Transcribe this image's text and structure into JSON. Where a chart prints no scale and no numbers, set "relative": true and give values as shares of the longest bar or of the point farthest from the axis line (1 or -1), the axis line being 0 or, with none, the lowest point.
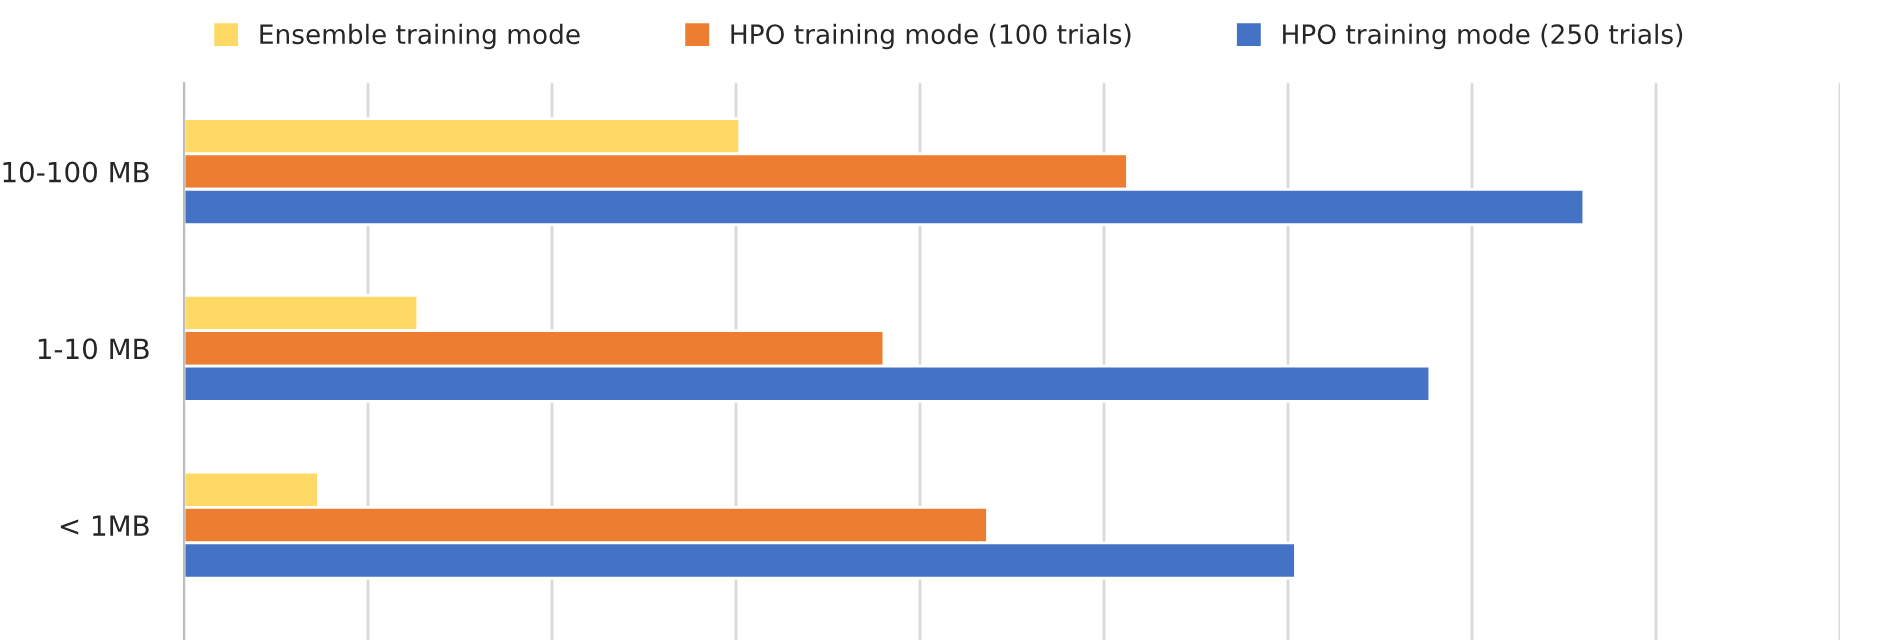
{
  "chart_data": {
    "type": "bar",
    "orientation": "horizontal",
    "relative": true,
    "categories": [
      "10-100 MB",
      "1-10 MB",
      "< 1MB"
    ],
    "series": [
      {
        "name": "Ensemble training mode",
        "color": "#ffd966",
        "values": [
          0.397,
          0.167,
          0.096
        ]
      },
      {
        "name": "HPO training mode (100 trials)",
        "color": "#ed7d31",
        "values": [
          0.674,
          0.5,
          0.574
        ]
      },
      {
        "name": "HPO training mode (250 trials)",
        "color": "#4472c4",
        "values": [
          1,
          0.89,
          0.794
        ]
      }
    ],
    "grid": "x",
    "legend": "top"
  }
}
